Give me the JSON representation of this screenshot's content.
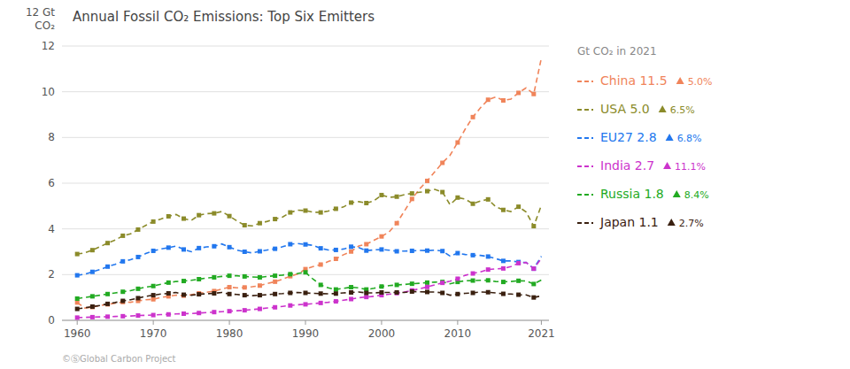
{
  "chart_data": {
    "type": "line",
    "title": "Annual Fossil CO₂ Emissions: Top Six Emitters",
    "y_label_lines": [
      "12 Gt",
      "CO₂"
    ],
    "legend_header": "Gt CO₂ in 2021",
    "copyright": "©ⓈGlobal Carbon Project",
    "x": [
      1960,
      1961,
      1962,
      1963,
      1964,
      1965,
      1966,
      1967,
      1968,
      1969,
      1970,
      1971,
      1972,
      1973,
      1974,
      1975,
      1976,
      1977,
      1978,
      1979,
      1980,
      1981,
      1982,
      1983,
      1984,
      1985,
      1986,
      1987,
      1988,
      1989,
      1990,
      1991,
      1992,
      1993,
      1994,
      1995,
      1996,
      1997,
      1998,
      1999,
      2000,
      2001,
      2002,
      2003,
      2004,
      2005,
      2006,
      2007,
      2008,
      2009,
      2010,
      2011,
      2012,
      2013,
      2014,
      2015,
      2016,
      2017,
      2018,
      2019,
      2020,
      2021
    ],
    "series": [
      {
        "name": "China 11.5",
        "annotation": "5.0%",
        "color": "#f0845a",
        "values": [
          0.78,
          0.54,
          0.58,
          0.65,
          0.7,
          0.75,
          0.8,
          0.79,
          0.85,
          0.9,
          0.92,
          1.0,
          1.05,
          1.1,
          1.08,
          1.12,
          1.18,
          1.23,
          1.28,
          1.37,
          1.45,
          1.42,
          1.44,
          1.47,
          1.52,
          1.61,
          1.69,
          1.8,
          1.93,
          2.03,
          2.24,
          2.35,
          2.44,
          2.57,
          2.69,
          2.87,
          3.01,
          3.25,
          3.33,
          3.5,
          3.67,
          3.87,
          4.25,
          4.78,
          5.31,
          5.75,
          6.1,
          6.5,
          6.89,
          7.22,
          7.78,
          8.37,
          8.89,
          9.3,
          9.65,
          9.77,
          9.62,
          9.68,
          9.95,
          10.17,
          9.9,
          11.47
        ]
      },
      {
        "name": "USA 5.0",
        "annotation": "6.5%",
        "color": "#8b8b2a",
        "values": [
          2.9,
          2.95,
          3.07,
          3.22,
          3.38,
          3.51,
          3.7,
          3.78,
          3.97,
          4.15,
          4.32,
          4.43,
          4.55,
          4.63,
          4.45,
          4.37,
          4.6,
          4.67,
          4.68,
          4.76,
          4.56,
          4.35,
          4.16,
          4.13,
          4.25,
          4.33,
          4.43,
          4.52,
          4.72,
          4.82,
          4.8,
          4.73,
          4.72,
          4.78,
          4.88,
          4.96,
          5.15,
          5.19,
          5.13,
          5.23,
          5.48,
          5.38,
          5.41,
          5.5,
          5.55,
          5.6,
          5.65,
          5.73,
          5.61,
          5.06,
          5.37,
          5.3,
          5.1,
          5.22,
          5.29,
          4.97,
          4.83,
          4.76,
          4.97,
          4.74,
          4.12,
          5.03
        ]
      },
      {
        "name": "EU27 2.8",
        "annotation": "6.8%",
        "color": "#2277ee",
        "values": [
          1.97,
          2.02,
          2.12,
          2.22,
          2.35,
          2.45,
          2.58,
          2.65,
          2.77,
          2.92,
          3.04,
          3.12,
          3.18,
          3.25,
          3.1,
          3.0,
          3.16,
          3.21,
          3.24,
          3.34,
          3.2,
          3.07,
          3.0,
          2.95,
          3.02,
          3.08,
          3.13,
          3.22,
          3.33,
          3.36,
          3.32,
          3.28,
          3.15,
          3.08,
          3.08,
          3.12,
          3.22,
          3.18,
          3.05,
          3.08,
          3.1,
          3.07,
          3.02,
          3.03,
          3.04,
          3.06,
          3.05,
          3.07,
          3.03,
          2.81,
          2.94,
          2.88,
          2.85,
          2.84,
          2.79,
          2.7,
          2.6,
          2.6,
          2.55,
          2.53,
          2.26,
          2.8
        ]
      },
      {
        "name": "Russia 1.8",
        "annotation": "8.4%",
        "color": "#22aa22",
        "values": [
          0.95,
          1.0,
          1.05,
          1.1,
          1.15,
          1.2,
          1.25,
          1.3,
          1.38,
          1.45,
          1.5,
          1.58,
          1.65,
          1.7,
          1.72,
          1.75,
          1.8,
          1.85,
          1.88,
          1.92,
          1.95,
          1.95,
          1.92,
          1.9,
          1.88,
          1.92,
          1.95,
          1.98,
          2.02,
          2.05,
          2.1,
          1.8,
          1.55,
          1.42,
          1.35,
          1.4,
          1.45,
          1.42,
          1.35,
          1.4,
          1.48,
          1.52,
          1.55,
          1.57,
          1.6,
          1.62,
          1.65,
          1.67,
          1.68,
          1.6,
          1.68,
          1.73,
          1.74,
          1.75,
          1.75,
          1.7,
          1.68,
          1.7,
          1.73,
          1.72,
          1.59,
          1.76
        ]
      },
      {
        "name": "India 2.7",
        "annotation": "11.1%",
        "color": "#cc33cc",
        "values": [
          0.12,
          0.13,
          0.14,
          0.15,
          0.16,
          0.17,
          0.18,
          0.19,
          0.21,
          0.22,
          0.23,
          0.25,
          0.26,
          0.28,
          0.29,
          0.3,
          0.32,
          0.34,
          0.36,
          0.38,
          0.4,
          0.42,
          0.44,
          0.47,
          0.5,
          0.54,
          0.57,
          0.61,
          0.65,
          0.68,
          0.7,
          0.73,
          0.76,
          0.79,
          0.83,
          0.88,
          0.93,
          0.99,
          1.02,
          1.05,
          1.1,
          1.14,
          1.19,
          1.24,
          1.31,
          1.38,
          1.46,
          1.55,
          1.64,
          1.71,
          1.82,
          1.97,
          2.05,
          2.12,
          2.22,
          2.25,
          2.27,
          2.35,
          2.5,
          2.53,
          2.26,
          2.71
        ]
      },
      {
        "name": "Japan 1.1",
        "annotation": "2.7%",
        "color": "#3a2010",
        "values": [
          0.5,
          0.55,
          0.6,
          0.65,
          0.72,
          0.78,
          0.85,
          0.9,
          0.97,
          1.05,
          1.1,
          1.15,
          1.18,
          1.22,
          1.12,
          1.1,
          1.14,
          1.16,
          1.18,
          1.22,
          1.15,
          1.13,
          1.1,
          1.08,
          1.1,
          1.12,
          1.15,
          1.17,
          1.2,
          1.22,
          1.2,
          1.18,
          1.17,
          1.16,
          1.17,
          1.2,
          1.22,
          1.24,
          1.2,
          1.2,
          1.22,
          1.22,
          1.22,
          1.22,
          1.26,
          1.25,
          1.24,
          1.24,
          1.2,
          1.1,
          1.15,
          1.18,
          1.2,
          1.24,
          1.23,
          1.2,
          1.16,
          1.15,
          1.12,
          1.11,
          1.0,
          1.07
        ]
      }
    ],
    "line_style": "dashed",
    "marker": "square",
    "xlim": [
      1958,
      2022
    ],
    "xticks": [
      1960,
      1970,
      1980,
      1990,
      2000,
      2010,
      2021
    ],
    "ylim": [
      0,
      12
    ],
    "yticks": [
      0,
      2,
      4,
      6,
      8,
      10,
      12
    ],
    "grid": "y",
    "legend": "right"
  }
}
